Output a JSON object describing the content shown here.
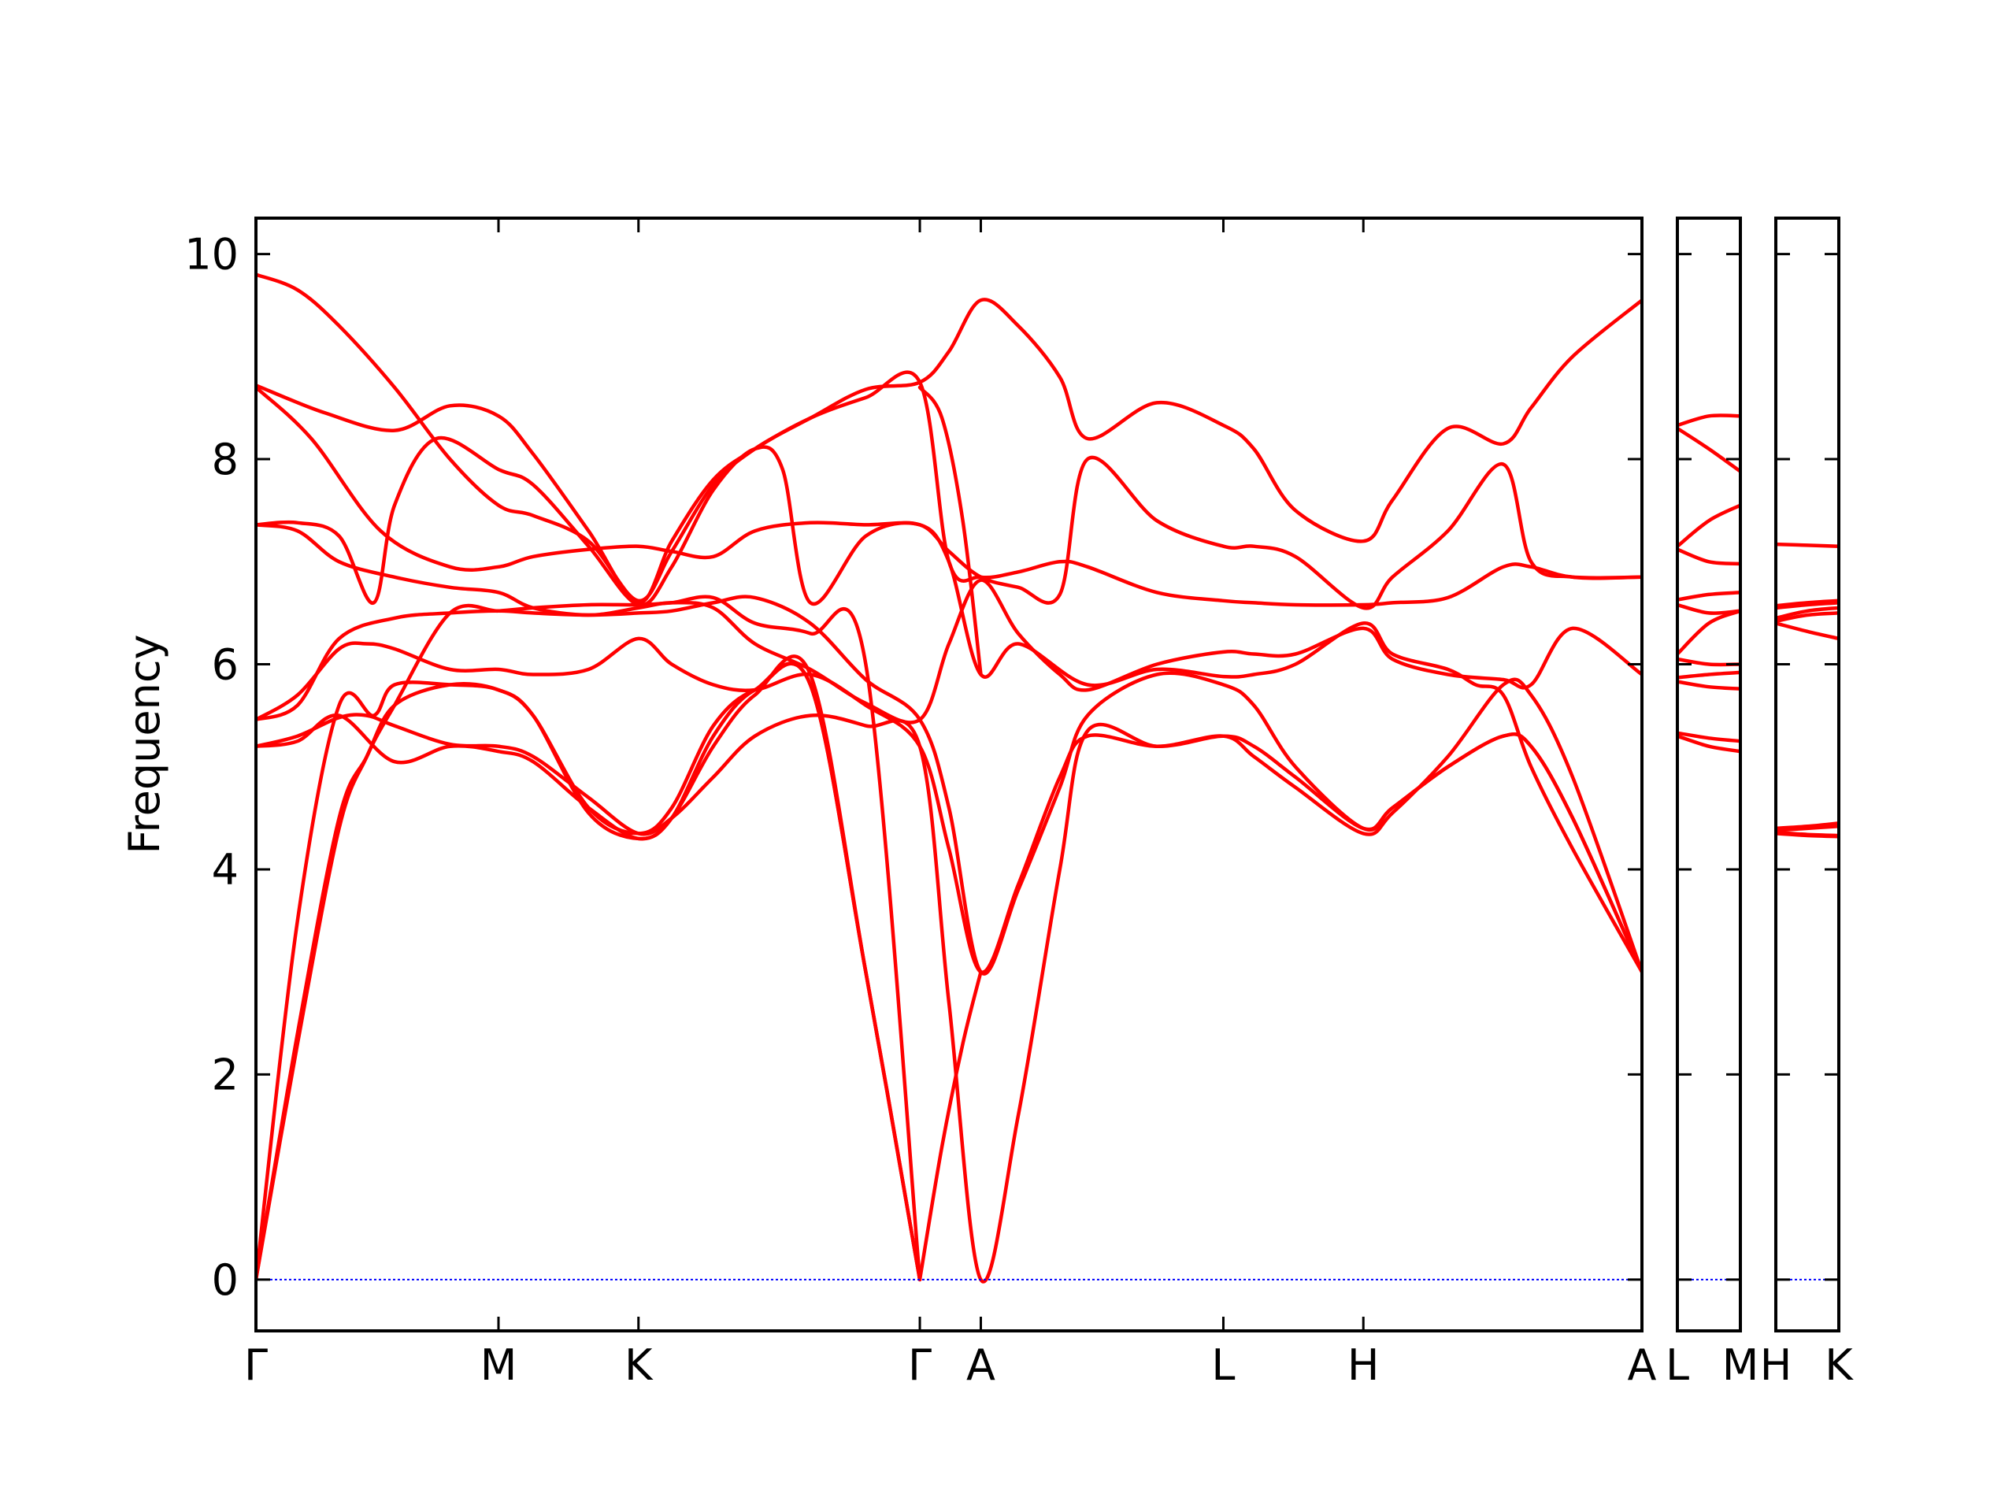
{
  "chart_data": {
    "type": "line",
    "title": "",
    "ylabel": "Frequency",
    "ylim": [
      -0.5,
      10.35
    ],
    "yticks": [
      0,
      2,
      4,
      6,
      8,
      10
    ],
    "grid": false,
    "legend": "none",
    "colors": {
      "bands": "#ff0000",
      "zero_line": "#0000ff",
      "axes": "#000000"
    },
    "panels": [
      {
        "name": "main",
        "xrange": [
          0,
          100
        ],
        "ticks": [
          {
            "x": 0,
            "label": "Γ"
          },
          {
            "x": 17.5,
            "label": "M"
          },
          {
            "x": 27.6,
            "label": "K"
          },
          {
            "x": 47.9,
            "label": "Γ"
          },
          {
            "x": 52.3,
            "label": "A"
          },
          {
            "x": 69.8,
            "label": "L"
          },
          {
            "x": 79.9,
            "label": "H"
          },
          {
            "x": 100,
            "label": "A"
          }
        ],
        "bands": [
          {
            "x": [
              0,
              3,
              6,
              10,
              14,
              17.5,
              20,
              24,
              27.6,
              30,
              33,
              36,
              40,
              44,
              47.9,
              50,
              52.3,
              55,
              58,
              60,
              65,
              69.8,
              72,
              75,
              79.9,
              82,
              86,
              90,
              92,
              95,
              100
            ],
            "y": [
              9.8,
              9.65,
              9.3,
              8.7,
              8.0,
              7.55,
              7.45,
              7.2,
              6.62,
              7.1,
              7.75,
              8.1,
              8.4,
              8.68,
              8.75,
              9.05,
              9.55,
              9.3,
              8.8,
              8.2,
              8.55,
              8.33,
              8.1,
              7.5,
              7.2,
              7.6,
              8.3,
              8.15,
              8.5,
              9.0,
              9.55
            ]
          },
          {
            "x": [
              0,
              5,
              10,
              14,
              17.5,
              20,
              24,
              27.6,
              30,
              33,
              36,
              40,
              44,
              47.9,
              50,
              52.3,
              55,
              58,
              60,
              65,
              69.8,
              72,
              75,
              79.9,
              82,
              86,
              90,
              92,
              95,
              100
            ],
            "y": [
              8.72,
              8.45,
              8.28,
              8.52,
              8.42,
              8.05,
              7.3,
              6.6,
              7.2,
              7.8,
              8.1,
              8.4,
              8.6,
              8.75,
              7.0,
              6.85,
              6.9,
              7.0,
              6.95,
              6.7,
              6.62,
              6.6,
              6.58,
              6.58,
              6.6,
              6.65,
              6.95,
              6.95,
              6.85,
              6.85
            ]
          },
          {
            "x": [
              0,
              4,
              9,
              14,
              17.5,
              20,
              24,
              27.6,
              30,
              33,
              36,
              40,
              44,
              47.9,
              50,
              52.3,
              55,
              58,
              60,
              65,
              69.8,
              72,
              75,
              79.9,
              82,
              86,
              90,
              92,
              95,
              100
            ],
            "y": [
              8.7,
              8.2,
              7.3,
              6.95,
              6.95,
              7.05,
              7.12,
              7.15,
              7.1,
              7.05,
              7.3,
              7.38,
              7.36,
              7.36,
              7.1,
              6.85,
              6.75,
              6.68,
              8.0,
              7.4,
              7.15,
              7.15,
              7.05,
              6.55,
              6.85,
              7.3,
              7.95,
              7.0,
              6.85,
              6.85
            ]
          },
          {
            "x": [
              0,
              3,
              6,
              8.5,
              10,
              13,
              17.5,
              20,
              24,
              27.6,
              30,
              33,
              36,
              38,
              40,
              44,
              47.9,
              50,
              52.3,
              55,
              60,
              65,
              69.8,
              72,
              75,
              79.9,
              82,
              86,
              88,
              90,
              92,
              95,
              100
            ],
            "y": [
              7.36,
              7.38,
              7.25,
              6.6,
              7.55,
              8.2,
              7.9,
              7.75,
              7.15,
              6.58,
              6.95,
              7.7,
              8.1,
              7.9,
              6.6,
              7.25,
              7.36,
              7.0,
              5.9,
              6.2,
              5.8,
              5.95,
              5.88,
              5.9,
              6.0,
              6.4,
              6.1,
              5.95,
              5.8,
              5.7,
              5.0,
              4.2,
              3.0
            ]
          },
          {
            "x": [
              0,
              3,
              6,
              10,
              14,
              17.5,
              20,
              24,
              27.6,
              30,
              33,
              36,
              40,
              44,
              47.9,
              50,
              52.3,
              55,
              58,
              60,
              65,
              69.8,
              72,
              75,
              79.9,
              82,
              86,
              90,
              92,
              95,
              100
            ],
            "y": [
              7.36,
              7.3,
              7.0,
              6.85,
              6.75,
              6.7,
              6.55,
              6.48,
              6.55,
              6.6,
              6.55,
              6.2,
              5.95,
              5.62,
              5.46,
              6.2,
              6.82,
              6.3,
              5.9,
              5.75,
              6.0,
              6.12,
              6.1,
              6.1,
              6.35,
              6.05,
              5.9,
              5.85,
              5.8,
              6.35,
              5.9
            ]
          },
          {
            "x": [
              0,
              3,
              6,
              10,
              14,
              17.5,
              20,
              24,
              27.6,
              30,
              33,
              36,
              40,
              44,
              47.9,
              50,
              52.3,
              55,
              58,
              60,
              65,
              69.8,
              72,
              75,
              79.9,
              82,
              86,
              90,
              92,
              95,
              100
            ],
            "y": [
              5.46,
              5.6,
              6.25,
              6.45,
              6.5,
              6.52,
              6.5,
              6.48,
              6.5,
              6.52,
              6.6,
              6.65,
              6.4,
              5.85,
              5.46,
              4.6,
              3.0,
              3.8,
              4.8,
              5.5,
              5.9,
              5.8,
              5.6,
              5.0,
              4.4,
              4.6,
              5.0,
              5.3,
              5.2,
              4.5,
              3.0
            ]
          },
          {
            "x": [
              0,
              3,
              6,
              8,
              10,
              14,
              17.5,
              20,
              24,
              27.6,
              30,
              33,
              36,
              40,
              44,
              47.9,
              50,
              52.3,
              55,
              58,
              60,
              65,
              69.8,
              72,
              75,
              79.9,
              82,
              86,
              90,
              92,
              95,
              100
            ],
            "y": [
              5.46,
              5.7,
              6.15,
              6.2,
              6.15,
              5.95,
              5.95,
              5.9,
              5.95,
              6.25,
              6.0,
              5.8,
              5.75,
              5.9,
              5.6,
              5.2,
              4.2,
              3.0,
              3.85,
              4.9,
              5.3,
              5.2,
              5.3,
              5.1,
              4.8,
              4.35,
              4.55,
              5.1,
              5.8,
              5.7,
              4.9,
              3.0
            ]
          },
          {
            "x": [
              0,
              3,
              6,
              8,
              10,
              14,
              17.5,
              20,
              24,
              27.6,
              30,
              33,
              36,
              40,
              44,
              47.9,
              50,
              52.3,
              55,
              58,
              60,
              65,
              69.8,
              72,
              75,
              79.9,
              82,
              86,
              90,
              92,
              95,
              100
            ],
            "y": [
              5.2,
              5.3,
              5.48,
              5.5,
              5.4,
              5.22,
              5.2,
              5.1,
              4.7,
              4.35,
              4.5,
              4.9,
              5.3,
              5.5,
              5.4,
              5.2,
              2.7,
              0.0,
              1.6,
              4.0,
              5.35,
              5.2,
              5.3,
              5.2,
              4.9,
              4.4,
              4.6,
              5.0,
              5.3,
              5.2,
              4.5,
              3.0
            ]
          },
          {
            "x": [
              0,
              3,
              6,
              10,
              14,
              17.5,
              20,
              24,
              27.6,
              30,
              33,
              36,
              40,
              44,
              47.9
            ],
            "y": [
              5.2,
              5.25,
              5.5,
              5.05,
              5.2,
              5.15,
              5.05,
              4.6,
              4.3,
              4.5,
              5.2,
              5.7,
              5.9,
              3.0,
              0.0
            ]
          },
          {
            "x": [
              0,
              3,
              6,
              8.5,
              10,
              14,
              17.5,
              20,
              24,
              27.6,
              30,
              33,
              36,
              40,
              44,
              47.9
            ],
            "y": [
              0.0,
              3.5,
              5.6,
              5.5,
              5.8,
              5.8,
              5.75,
              5.5,
              4.6,
              4.35,
              4.6,
              5.4,
              5.75,
              5.8,
              3.0,
              0.0
            ]
          },
          {
            "x": [
              0,
              3,
              6,
              8,
              10,
              14,
              17.5,
              20,
              24,
              27.6,
              30,
              33,
              36,
              40,
              44,
              47.9
            ],
            "y": [
              0.0,
              2.4,
              4.5,
              5.1,
              5.6,
              5.8,
              5.75,
              5.5,
              4.55,
              4.3,
              4.5,
              5.3,
              5.75,
              5.8,
              3.0,
              0.0
            ]
          },
          {
            "x": [
              0,
              3,
              6,
              8,
              10,
              14,
              17.5,
              20,
              24,
              27.6,
              30,
              33,
              36,
              40,
              44,
              47.9
            ],
            "y": [
              0.0,
              2.3,
              4.4,
              5.1,
              5.6,
              6.5,
              6.52,
              6.55,
              6.58,
              6.58,
              6.6,
              6.65,
              6.4,
              6.3,
              6.0,
              0.0
            ]
          },
          {
            "x": [
              47.9,
              49.5,
              51,
              52.3
            ],
            "y": [
              0.0,
              1.3,
              2.3,
              3.0
            ]
          },
          {
            "x": [
              47.9,
              49.5,
              51,
              52.3
            ],
            "y": [
              8.7,
              8.4,
              7.4,
              5.9
            ]
          }
        ]
      },
      {
        "name": "A-L-M",
        "xrange": [
          0,
          1
        ],
        "ticks": [
          {
            "x": 0,
            "label": "L"
          },
          {
            "x": 1,
            "label": "M"
          }
        ],
        "bands": [
          {
            "x": [
              0,
              0.5,
              1
            ],
            "y": [
              8.33,
              8.42,
              8.42
            ]
          },
          {
            "x": [
              0,
              0.5,
              1
            ],
            "y": [
              8.3,
              8.1,
              7.88
            ]
          },
          {
            "x": [
              0,
              0.5,
              1
            ],
            "y": [
              7.15,
              7.4,
              7.55
            ]
          },
          {
            "x": [
              0,
              0.5,
              1
            ],
            "y": [
              7.12,
              7.0,
              6.98
            ]
          },
          {
            "x": [
              0,
              0.5,
              1
            ],
            "y": [
              6.63,
              6.68,
              6.7
            ]
          },
          {
            "x": [
              0,
              0.5,
              1
            ],
            "y": [
              6.58,
              6.5,
              6.52
            ]
          },
          {
            "x": [
              0,
              0.5,
              1
            ],
            "y": [
              6.1,
              6.4,
              6.52
            ]
          },
          {
            "x": [
              0,
              0.5,
              1
            ],
            "y": [
              6.05,
              6.0,
              6.0
            ]
          },
          {
            "x": [
              0,
              0.5,
              1
            ],
            "y": [
              5.87,
              5.9,
              5.92
            ]
          },
          {
            "x": [
              0,
              0.5,
              1
            ],
            "y": [
              5.83,
              5.78,
              5.76
            ]
          },
          {
            "x": [
              0,
              0.5,
              1
            ],
            "y": [
              5.33,
              5.28,
              5.25
            ]
          },
          {
            "x": [
              0,
              0.5,
              1
            ],
            "y": [
              5.3,
              5.2,
              5.15
            ]
          }
        ]
      },
      {
        "name": "H-K",
        "xrange": [
          0,
          1
        ],
        "ticks": [
          {
            "x": 0,
            "label": "H"
          },
          {
            "x": 1,
            "label": "K"
          }
        ],
        "bands": [
          {
            "x": [
              0,
              0.5,
              1
            ],
            "y": [
              7.17,
              7.16,
              7.15
            ]
          },
          {
            "x": [
              0,
              0.5,
              1
            ],
            "y": [
              6.57,
              6.6,
              6.62
            ]
          },
          {
            "x": [
              0,
              0.5,
              1
            ],
            "y": [
              6.55,
              6.58,
              6.6
            ]
          },
          {
            "x": [
              0,
              0.5,
              1
            ],
            "y": [
              6.45,
              6.52,
              6.55
            ]
          },
          {
            "x": [
              0,
              0.5,
              1
            ],
            "y": [
              6.42,
              6.48,
              6.5
            ]
          },
          {
            "x": [
              0,
              0.5,
              1
            ],
            "y": [
              6.4,
              6.32,
              6.25
            ]
          },
          {
            "x": [
              0,
              0.5,
              1
            ],
            "y": [
              4.4,
              4.42,
              4.45
            ]
          },
          {
            "x": [
              0,
              0.5,
              1
            ],
            "y": [
              4.38,
              4.4,
              4.42
            ]
          },
          {
            "x": [
              0,
              0.5,
              1
            ],
            "y": [
              4.36,
              4.34,
              4.33
            ]
          },
          {
            "x": [
              0,
              0.5,
              1
            ],
            "y": [
              4.35,
              4.33,
              4.32
            ]
          }
        ]
      }
    ]
  }
}
